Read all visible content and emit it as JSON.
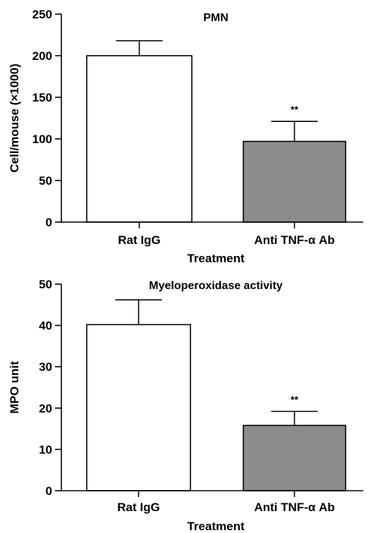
{
  "chart_data": [
    {
      "type": "bar",
      "title": "PMN",
      "xlabel": "Treatment",
      "ylabel": "Cell/mouse (×1000)",
      "categories": [
        "Rat IgG",
        "Anti TNF-α Ab"
      ],
      "values": [
        200,
        97
      ],
      "errors": [
        18,
        24
      ],
      "annotations": [
        "",
        "**"
      ],
      "bar_colors": [
        "#ffffff",
        "#8c8c8c"
      ],
      "ylim": [
        0,
        250
      ],
      "yticks": [
        0,
        50,
        100,
        150,
        200,
        250
      ],
      "grid": false,
      "legend": "none"
    },
    {
      "type": "bar",
      "title": "Myeloperoxidase activity",
      "xlabel": "Treatment",
      "ylabel": "MPO unit",
      "categories": [
        "Rat IgG",
        "Anti TNF-α Ab"
      ],
      "values": [
        40.2,
        15.8
      ],
      "errors": [
        6,
        3.4
      ],
      "annotations": [
        "",
        "**"
      ],
      "bar_colors": [
        "#ffffff",
        "#8c8c8c"
      ],
      "ylim": [
        0,
        50
      ],
      "yticks": [
        0,
        10,
        20,
        30,
        40,
        50
      ],
      "grid": false,
      "legend": "none"
    }
  ]
}
